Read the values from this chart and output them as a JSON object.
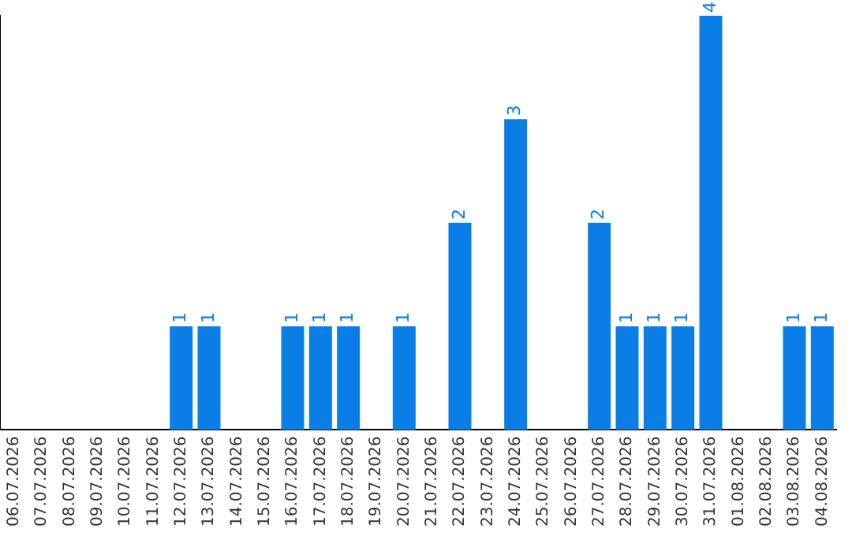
{
  "chart_data": {
    "type": "bar",
    "categories": [
      "06.07.2026",
      "07.07.2026",
      "08.07.2026",
      "09.07.2026",
      "10.07.2026",
      "11.07.2026",
      "12.07.2026",
      "13.07.2026",
      "14.07.2026",
      "15.07.2026",
      "16.07.2026",
      "17.07.2026",
      "18.07.2026",
      "19.07.2026",
      "20.07.2026",
      "21.07.2026",
      "22.07.2026",
      "23.07.2026",
      "24.07.2026",
      "25.07.2026",
      "26.07.2026",
      "27.07.2026",
      "28.07.2026",
      "29.07.2026",
      "30.07.2026",
      "31.07.2026",
      "01.08.2026",
      "02.08.2026",
      "03.08.2026",
      "04.08.2026"
    ],
    "values": [
      0,
      0,
      0,
      0,
      0,
      0,
      1,
      1,
      0,
      0,
      1,
      1,
      1,
      0,
      1,
      0,
      2,
      0,
      3,
      0,
      0,
      2,
      1,
      1,
      1,
      4,
      0,
      0,
      1,
      1
    ],
    "value_labels": [
      null,
      null,
      null,
      null,
      null,
      null,
      "1",
      "1",
      null,
      null,
      "1",
      "1",
      "1",
      null,
      "1",
      null,
      "2",
      null,
      "3",
      null,
      null,
      "2",
      "1",
      "1",
      "1",
      "4",
      null,
      null,
      "1",
      "1"
    ],
    "color": "#0a7ee6",
    "ylim": [
      0,
      4
    ],
    "grid": false,
    "legend": false
  }
}
